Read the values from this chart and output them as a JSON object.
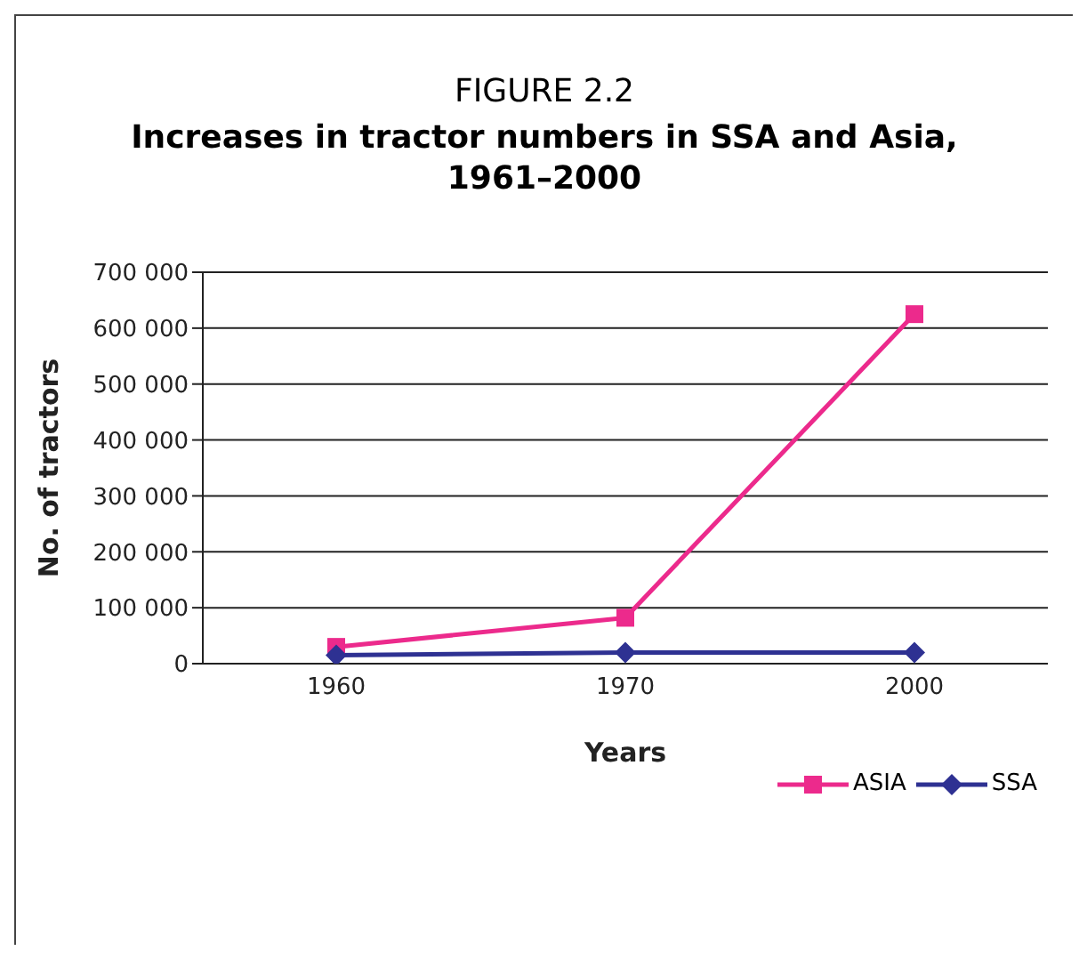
{
  "chart_data": {
    "type": "line",
    "title": "FIGURE 2.2",
    "subtitle": "Increases in tractor numbers in SSA and Asia, 1961–2000",
    "xlabel": "Years",
    "ylabel": "No. of tractors",
    "categories": [
      "1960",
      "1970",
      "2000"
    ],
    "series": [
      {
        "name": "ASIA",
        "color": "#ec2a8c",
        "marker": "square",
        "values": [
          30000,
          82000,
          625000
        ]
      },
      {
        "name": "SSA",
        "color": "#2e3192",
        "marker": "diamond",
        "values": [
          15000,
          20000,
          20000
        ]
      }
    ],
    "ylim": [
      0,
      700000
    ],
    "yticks": [
      {
        "value": 0,
        "label": "0"
      },
      {
        "value": 100000,
        "label": "100 000"
      },
      {
        "value": 200000,
        "label": "200 000"
      },
      {
        "value": 300000,
        "label": "300 000"
      },
      {
        "value": 400000,
        "label": "400 000"
      },
      {
        "value": 500000,
        "label": "500 000"
      },
      {
        "value": 600000,
        "label": "600 000"
      },
      {
        "value": 700000,
        "label": "700 000"
      }
    ],
    "grid": "y",
    "legend": "bottom right"
  }
}
